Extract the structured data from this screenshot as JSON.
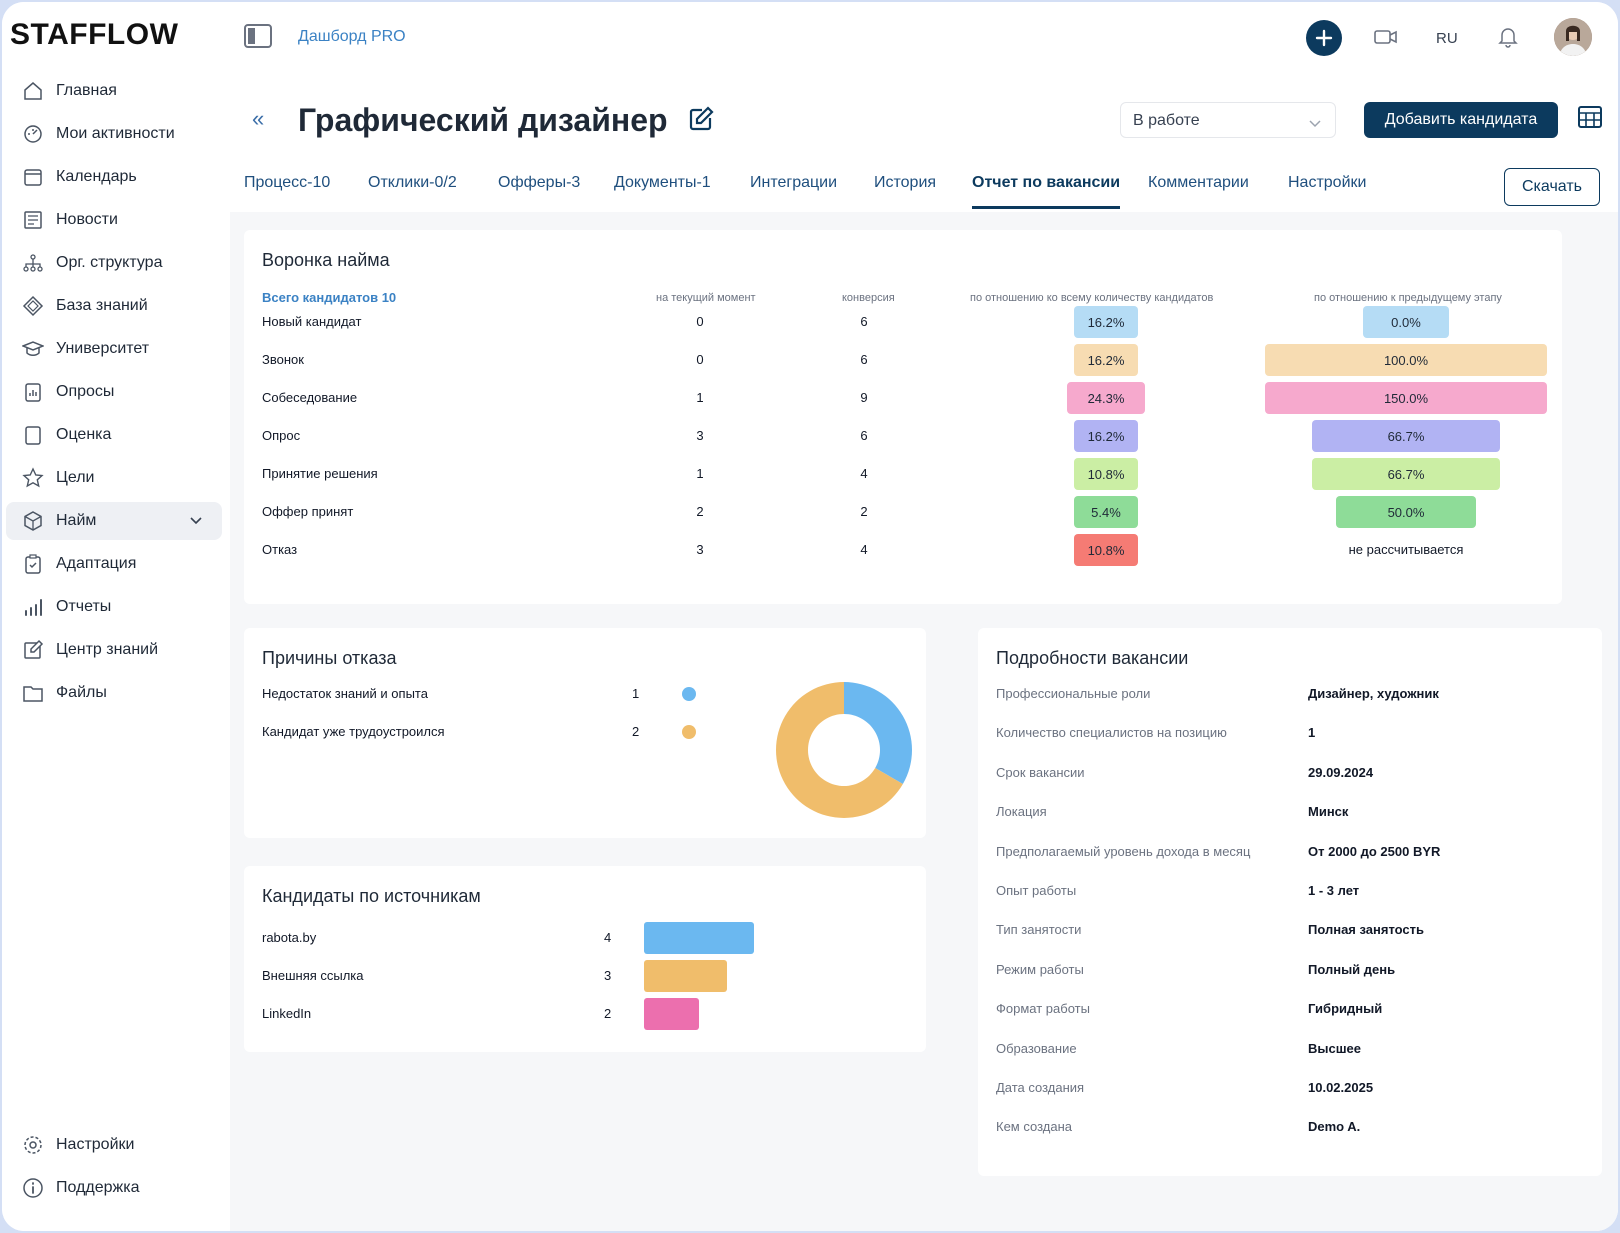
{
  "app": {
    "logo": "STAFFLOW",
    "breadcrumb": "Дашборд PRO",
    "lang": "RU"
  },
  "sidebar": {
    "items": [
      {
        "label": "Главная",
        "icon": "home-icon"
      },
      {
        "label": "Мои активности",
        "icon": "gauge-icon"
      },
      {
        "label": "Календарь",
        "icon": "calendar-icon"
      },
      {
        "label": "Новости",
        "icon": "news-icon"
      },
      {
        "label": "Орг. структура",
        "icon": "org-icon"
      },
      {
        "label": "База знаний",
        "icon": "diamond-icon"
      },
      {
        "label": "Университет",
        "icon": "graduation-icon"
      },
      {
        "label": "Опросы",
        "icon": "survey-icon"
      },
      {
        "label": "Оценка",
        "icon": "square-icon"
      },
      {
        "label": "Цели",
        "icon": "star-icon"
      },
      {
        "label": "Найм",
        "icon": "cube-icon"
      },
      {
        "label": "Адаптация",
        "icon": "clipboard-icon"
      },
      {
        "label": "Отчеты",
        "icon": "bars-icon"
      },
      {
        "label": "Центр знаний",
        "icon": "edit-icon"
      },
      {
        "label": "Файлы",
        "icon": "folder-icon"
      }
    ],
    "bottom": [
      {
        "label": "Настройки",
        "icon": "gear-icon"
      },
      {
        "label": "Поддержка",
        "icon": "info-icon"
      }
    ]
  },
  "header": {
    "title": "Графический дизайнер",
    "status": "В работе",
    "add_candidate": "Добавить кандидата",
    "download": "Скачать"
  },
  "tabs": [
    "Процесс-10",
    "Отклики-0/2",
    "Офферы-3",
    "Документы-1",
    "Интеграции",
    "История",
    "Отчет по вакансии",
    "Комментарии",
    "Настройки"
  ],
  "funnel": {
    "title": "Воронка найма",
    "total": "Всего кандидатов 10",
    "col_current": "на текущий момент",
    "col_conversion": "конверсия",
    "col_total_pct": "по отношению ко всему количеству кандидатов",
    "col_prev_pct": "по отношению к предыдущему этапу",
    "rows": [
      {
        "name": "Новый кандидат",
        "current": "0",
        "conversion": "6",
        "total_pct": "16.2%",
        "prev_pct": "0.0%",
        "total_color": "#b5dcf5",
        "prev_color": "#b5dcf5"
      },
      {
        "name": "Звонок",
        "current": "0",
        "conversion": "6",
        "total_pct": "16.2%",
        "prev_pct": "100.0%",
        "total_color": "#f7dcb2",
        "prev_color": "#f7dcb2"
      },
      {
        "name": "Собеседование",
        "current": "1",
        "conversion": "9",
        "total_pct": "24.3%",
        "prev_pct": "150.0%",
        "total_color": "#f6a9cd",
        "prev_color": "#f6a9cd"
      },
      {
        "name": "Опрос",
        "current": "3",
        "conversion": "6",
        "total_pct": "16.2%",
        "prev_pct": "66.7%",
        "total_color": "#b1b3f3",
        "prev_color": "#b1b3f3"
      },
      {
        "name": "Принятие решения",
        "current": "1",
        "conversion": "4",
        "total_pct": "10.8%",
        "prev_pct": "66.7%",
        "total_color": "#cbeea4",
        "prev_color": "#cbeea4"
      },
      {
        "name": "Оффер принят",
        "current": "2",
        "conversion": "2",
        "total_pct": "5.4%",
        "prev_pct": "50.0%",
        "total_color": "#8edc98",
        "prev_color": "#8edc98"
      },
      {
        "name": "Отказ",
        "current": "3",
        "conversion": "4",
        "total_pct": "10.8%",
        "prev_pct": "не рассчитывается",
        "total_color": "#f57b74",
        "prev_color": ""
      }
    ]
  },
  "reasons": {
    "title": "Причины отказа",
    "items": [
      {
        "label": "Недостаток знаний и опыта",
        "count": 1,
        "color": "#6bb8f0"
      },
      {
        "label": "Кандидат уже трудоустроился",
        "count": 2,
        "color": "#f0bd6b"
      }
    ]
  },
  "sources": {
    "title": "Кандидаты по источникам",
    "items": [
      {
        "label": "rabota.by",
        "count": 4,
        "color": "#6bb8f0"
      },
      {
        "label": "Внешняя ссылка",
        "count": 3,
        "color": "#f0bd6b"
      },
      {
        "label": "LinkedIn",
        "count": 2,
        "color": "#ec6fae"
      }
    ]
  },
  "details": {
    "title": "Подробности вакансии",
    "rows": [
      {
        "label": "Профессиональные роли",
        "value": "Дизайнер, художник"
      },
      {
        "label": "Количество специалистов на позицию",
        "value": "1"
      },
      {
        "label": "Срок вакансии",
        "value": "29.09.2024"
      },
      {
        "label": "Локация",
        "value": "Минск"
      },
      {
        "label": "Предполагаемый уровень дохода в месяц",
        "value": "От 2000 до 2500 BYR"
      },
      {
        "label": "Опыт работы",
        "value": "1 - 3 лет"
      },
      {
        "label": "Тип занятости",
        "value": "Полная занятость"
      },
      {
        "label": "Режим работы",
        "value": "Полный день"
      },
      {
        "label": "Формат работы",
        "value": "Гибридный"
      },
      {
        "label": "Образование",
        "value": "Высшее"
      },
      {
        "label": "Дата создания",
        "value": "10.02.2025"
      },
      {
        "label": "Кем создана",
        "value": "Demo A."
      }
    ]
  }
}
